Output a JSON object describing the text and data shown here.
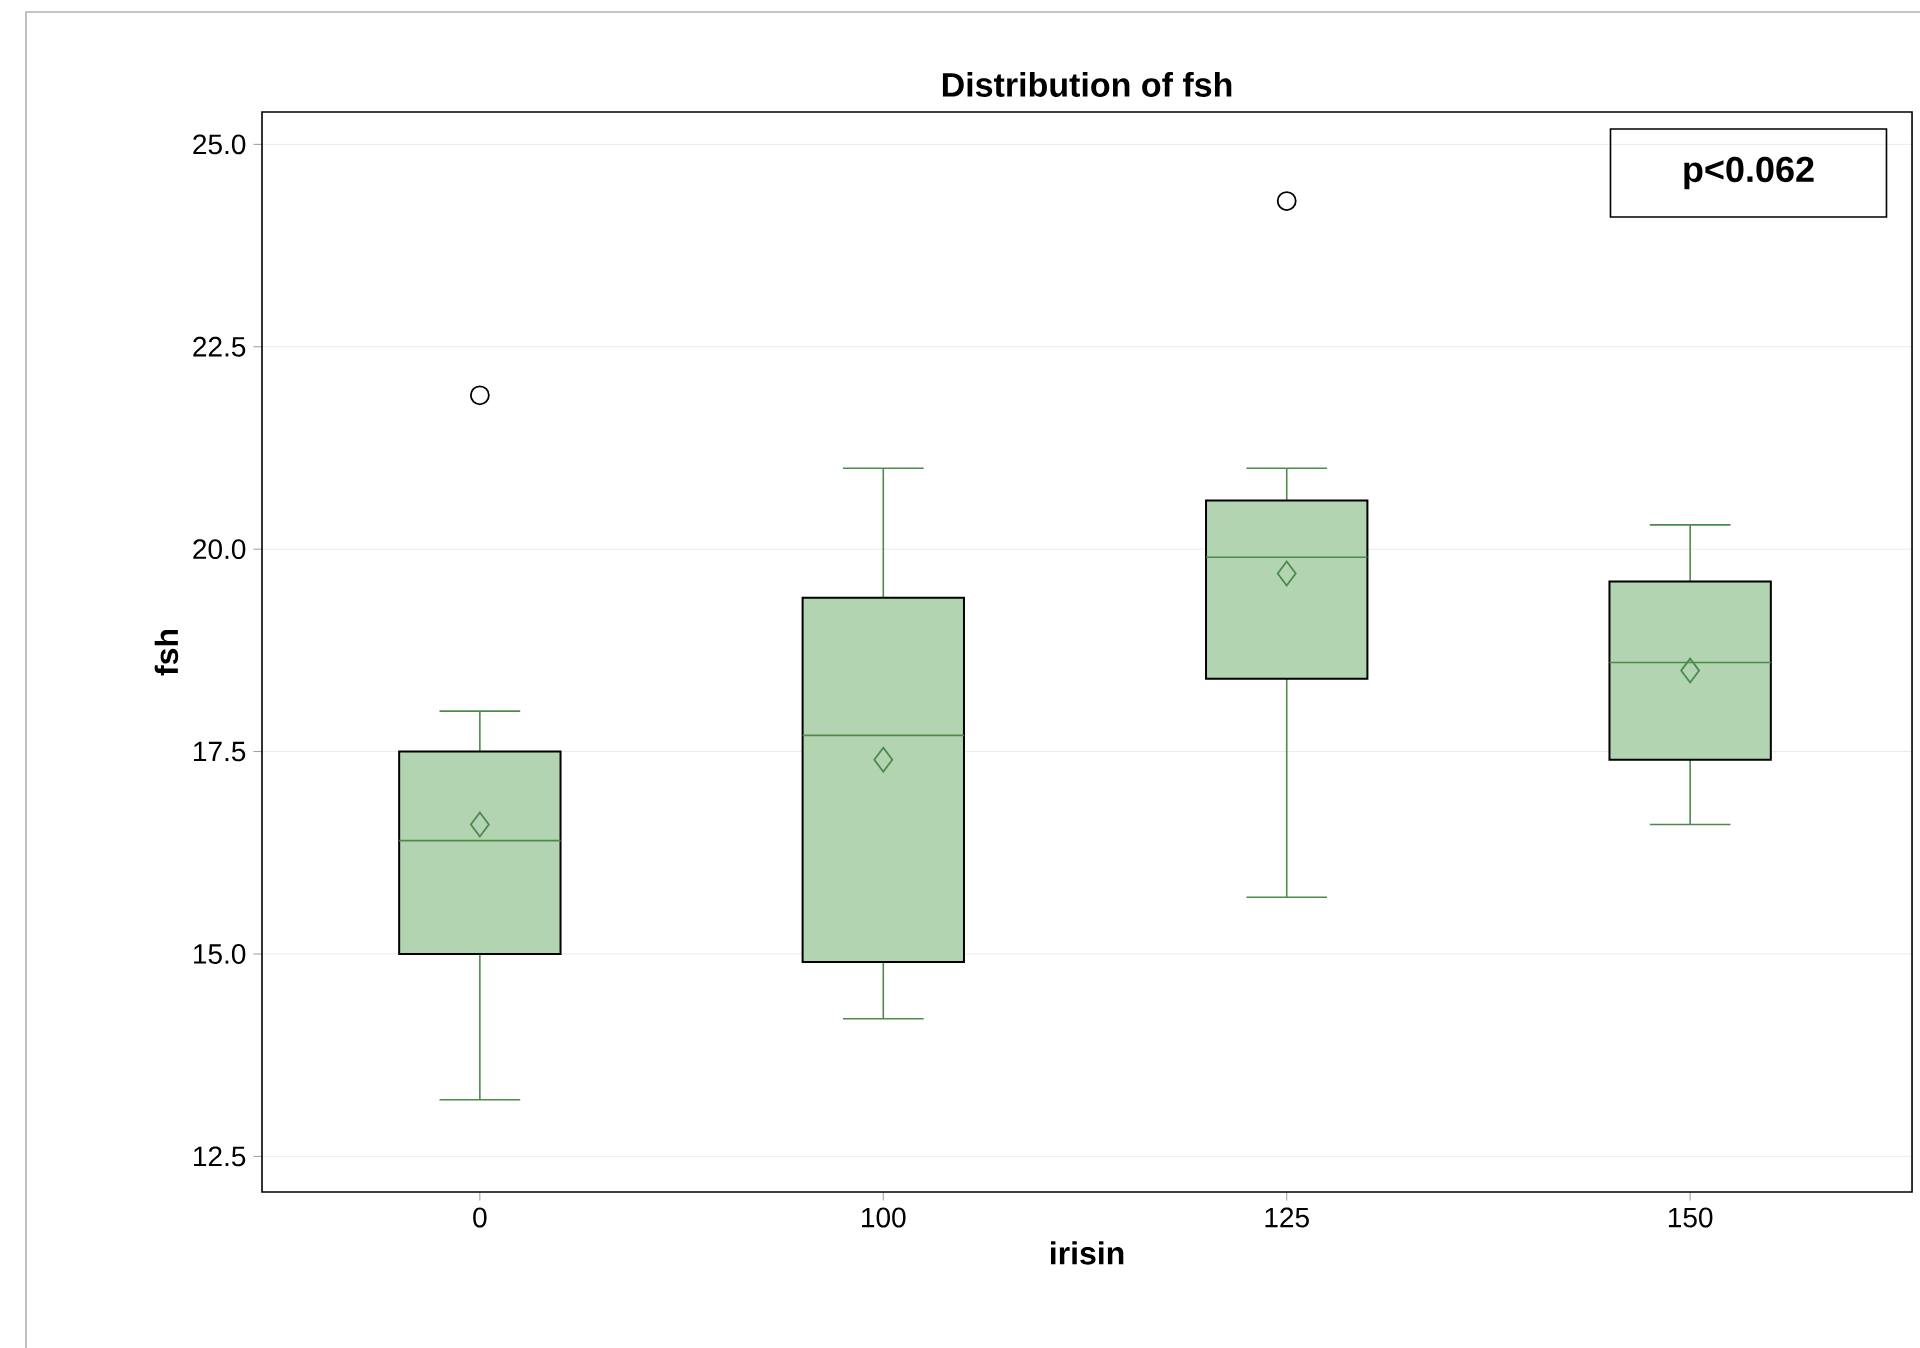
{
  "chart_data": {
    "type": "box",
    "title": "Distribution of fsh",
    "xlabel": "irisin",
    "ylabel": "fsh",
    "categories": [
      "0",
      "100",
      "125",
      "150"
    ],
    "color": "#b3d4b1",
    "boxes": [
      {
        "low": 13.2,
        "q1": 15.0,
        "median": 16.4,
        "q3": 17.5,
        "high": 18.0,
        "mean": 16.6,
        "outliers": [
          21.9
        ]
      },
      {
        "low": 14.2,
        "q1": 14.9,
        "median": 17.7,
        "q3": 19.4,
        "high": 21.0,
        "mean": 17.4
      },
      {
        "low": 15.7,
        "q1": 18.4,
        "median": 19.9,
        "q3": 20.6,
        "high": 21.0,
        "mean": 19.7,
        "outliers": [
          24.3
        ]
      },
      {
        "low": 16.6,
        "q1": 17.4,
        "median": 18.6,
        "q3": 19.6,
        "high": 20.3,
        "mean": 18.5
      }
    ],
    "ylim": [
      12.06,
      25.4
    ],
    "yticks": [
      {
        "value": 12.5,
        "label": "12.5"
      },
      {
        "value": 15,
        "label": "15.0"
      },
      {
        "value": 17.5,
        "label": "17.5"
      },
      {
        "value": 20,
        "label": "20.0"
      },
      {
        "value": 22.5,
        "label": "22.5"
      },
      {
        "value": 25,
        "label": "25.0"
      }
    ],
    "grid": "y",
    "annotations": [
      "p<0.062"
    ]
  }
}
